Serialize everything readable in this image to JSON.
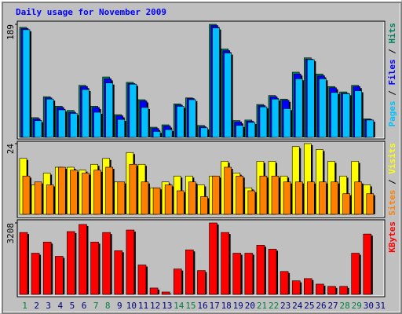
{
  "chart_data": [
    {
      "type": "bar",
      "title": "Daily usage for November 2009",
      "ylim": [
        0,
        189
      ],
      "yticks": [
        189
      ],
      "series": [
        {
          "name": "Hits",
          "color": "#00805c",
          "values": [
            184,
            33,
            68,
            52,
            45,
            87,
            52,
            101,
            38,
            92,
            63,
            17,
            21,
            56,
            66,
            20,
            189,
            148,
            28,
            29,
            55,
            70,
            64,
            109,
            133,
            106,
            85,
            76,
            87,
            31,
            0
          ]
        },
        {
          "name": "Files",
          "color": "#0000ff",
          "values": [
            182,
            31,
            66,
            50,
            42,
            85,
            50,
            98,
            36,
            90,
            61,
            15,
            19,
            54,
            65,
            18,
            187,
            145,
            26,
            27,
            53,
            68,
            62,
            106,
            131,
            103,
            83,
            74,
            85,
            30,
            0
          ]
        },
        {
          "name": "Pages",
          "color": "#00c0ff",
          "values": [
            180,
            28,
            64,
            46,
            40,
            80,
            42,
            91,
            30,
            89,
            50,
            10,
            13,
            52,
            63,
            16,
            183,
            141,
            20,
            25,
            51,
            64,
            48,
            98,
            130,
            98,
            75,
            73,
            78,
            29,
            0
          ]
        }
      ]
    },
    {
      "type": "bar",
      "ylim": [
        0,
        24
      ],
      "yticks": [
        24
      ],
      "series": [
        {
          "name": "Visits",
          "color": "#ffff00",
          "values": [
            19,
            10,
            14,
            16,
            16,
            15,
            17,
            19,
            11,
            21,
            17,
            9,
            11,
            13,
            13,
            10,
            13,
            18,
            14,
            9,
            18,
            18,
            13,
            23,
            24,
            22,
            18,
            13,
            18,
            10,
            0
          ]
        },
        {
          "name": "Sites",
          "color": "#ff8000",
          "values": [
            13,
            11,
            10,
            16,
            15,
            14,
            15,
            16,
            11,
            17,
            11,
            9,
            10,
            8,
            11,
            6,
            13,
            16,
            13,
            8,
            13,
            13,
            11,
            11,
            11,
            11,
            11,
            7,
            11,
            7,
            0
          ]
        }
      ]
    },
    {
      "type": "bar",
      "ylim": [
        0,
        3208
      ],
      "yticks": [
        3208
      ],
      "categories": [
        "1",
        "2",
        "3",
        "4",
        "5",
        "6",
        "7",
        "8",
        "9",
        "10",
        "11",
        "12",
        "13",
        "14",
        "15",
        "16",
        "17",
        "18",
        "19",
        "20",
        "21",
        "22",
        "23",
        "24",
        "25",
        "26",
        "27",
        "28",
        "29",
        "30",
        "31"
      ],
      "category_colors": [
        "#008040",
        "#000080",
        "#000080",
        "#000080",
        "#000080",
        "#000080",
        "#008040",
        "#008040",
        "#000080",
        "#000080",
        "#000080",
        "#000080",
        "#000080",
        "#008040",
        "#008040",
        "#000080",
        "#000080",
        "#000080",
        "#000080",
        "#000080",
        "#008040",
        "#008040",
        "#000080",
        "#000080",
        "#000080",
        "#000080",
        "#000080",
        "#008040",
        "#008040",
        "#000080",
        "#000080"
      ],
      "series": [
        {
          "name": "KBytes",
          "color": "#ff0000",
          "values": [
            2780,
            1850,
            2350,
            1710,
            2820,
            3140,
            2350,
            2780,
            1960,
            2890,
            1320,
            285,
            107,
            1140,
            2000,
            1070,
            3208,
            2780,
            1850,
            1850,
            2210,
            2030,
            1030,
            610,
            710,
            460,
            360,
            360,
            1850,
            2710,
            0
          ]
        }
      ]
    }
  ],
  "legend_separator": " / "
}
